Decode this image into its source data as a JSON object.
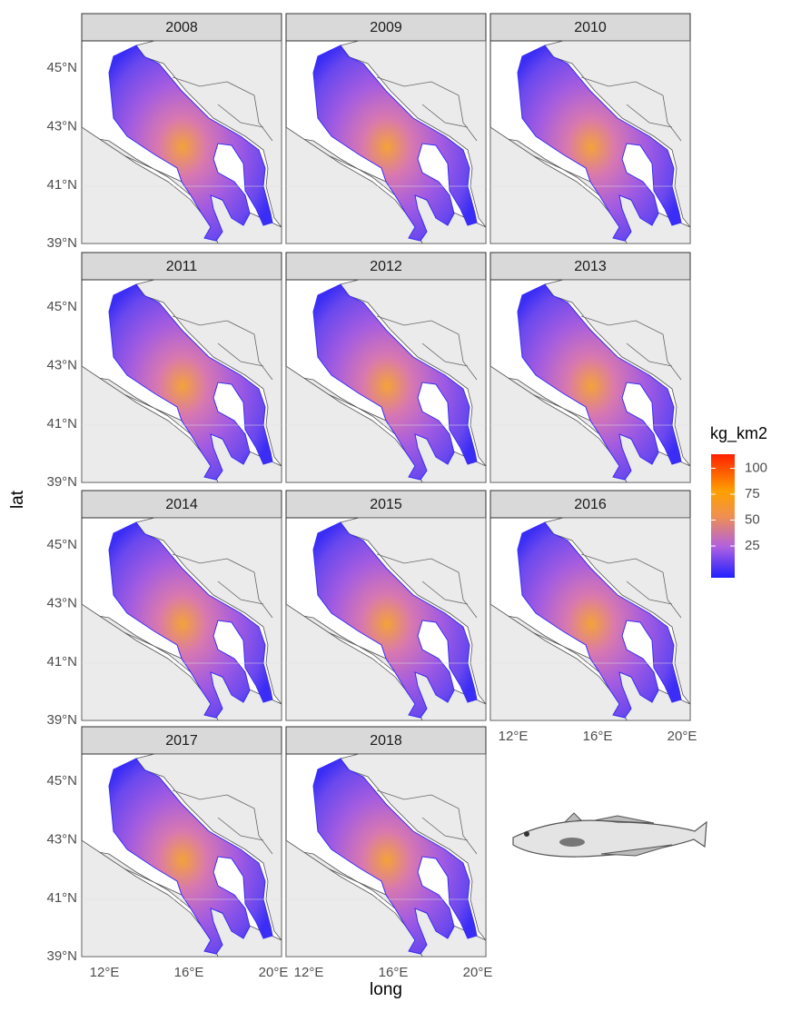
{
  "panels": [
    {
      "title": "2008"
    },
    {
      "title": "2009"
    },
    {
      "title": "2010"
    },
    {
      "title": "2011"
    },
    {
      "title": "2012"
    },
    {
      "title": "2013"
    },
    {
      "title": "2014"
    },
    {
      "title": "2015"
    },
    {
      "title": "2016"
    },
    {
      "title": "2017"
    },
    {
      "title": "2018"
    }
  ],
  "axes": {
    "x_label": "long",
    "y_label": "lat",
    "y_ticks": [
      "45°N",
      "43°N",
      "41°N",
      "39°N"
    ],
    "x_ticks": [
      "12°E",
      "16°E",
      "20°E"
    ]
  },
  "legend": {
    "title": "kg_km2",
    "ticks": [
      25,
      50,
      75,
      100
    ]
  }
}
